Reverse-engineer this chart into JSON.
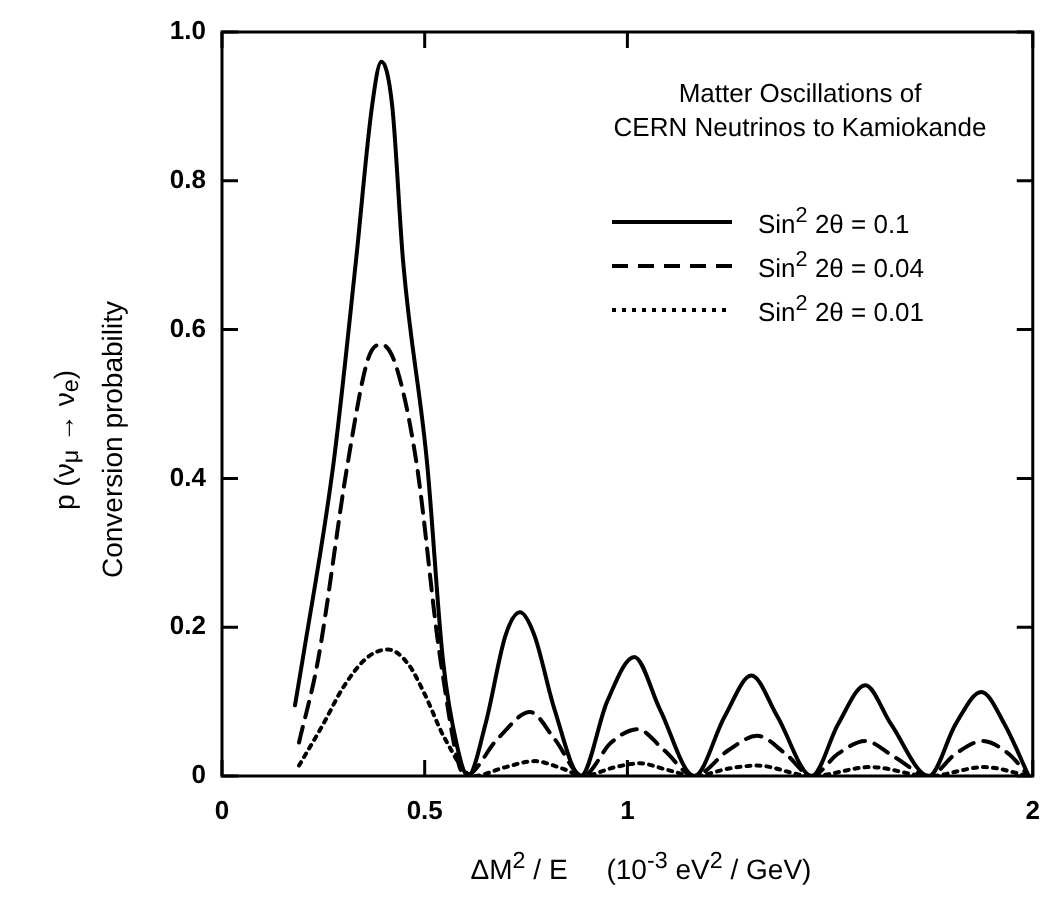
{
  "chart_data": {
    "type": "line",
    "title": "Matter Oscillations of\nCERN Neutrinos to Kamiokande",
    "xlabel": "ΔM$^{2}$ / E     (10$^{-3}$ eV$^{2}$ / GeV)",
    "ylabel": "p (ν$_{μ}$ → ν$_{e}$)\nConversion probability",
    "xlim": [
      0,
      2
    ],
    "xticks": [
      0,
      0.5,
      1,
      2
    ],
    "ylim": [
      0,
      1
    ],
    "yticks": [
      0,
      0.2,
      0.4,
      0.6,
      0.8,
      {
        "value": 1,
        "label": "1.0"
      }
    ],
    "grid": false,
    "legend": "top right",
    "marker": "none",
    "series": [
      {
        "name": "Sin$^{2}$ 2θ = 0.1",
        "color": "#000000",
        "line_style": "solid",
        "x": [
          0.18,
          0.2,
          0.275,
          0.33,
          0.37,
          0.393,
          0.42,
          0.447,
          0.506,
          0.545,
          0.58,
          0.607,
          0.65,
          0.7,
          0.735,
          0.77,
          0.82,
          0.885,
          0.95,
          1.017,
          1.08,
          1.165,
          1.24,
          1.306,
          1.37,
          1.455,
          1.52,
          1.587,
          1.65,
          1.744,
          1.81,
          1.873,
          1.93,
          1.99
        ],
        "values": [
          0.095,
          0.16,
          0.42,
          0.69,
          0.9,
          0.96,
          0.9,
          0.69,
          0.42,
          0.156,
          0.04,
          0,
          0.07,
          0.19,
          0.22,
          0.19,
          0.09,
          0,
          0.1,
          0.16,
          0.09,
          0,
          0.08,
          0.135,
          0.08,
          0,
          0.07,
          0.122,
          0.07,
          0,
          0.07,
          0.113,
          0.07,
          0
        ]
      },
      {
        "name": "Sin$^{2}$ 2θ = 0.04",
        "color": "#000000",
        "line_style": "dashed",
        "x": [
          0.19,
          0.237,
          0.31,
          0.36,
          0.393,
          0.43,
          0.48,
          0.539,
          0.6,
          0.68,
          0.76,
          0.82,
          0.89,
          0.96,
          1.025,
          1.09,
          1.165,
          1.25,
          1.32,
          1.39,
          1.455,
          1.52,
          1.587,
          1.66,
          1.744,
          1.81,
          1.876,
          1.94,
          1.99
        ],
        "values": [
          0.045,
          0.156,
          0.42,
          0.56,
          0.58,
          0.55,
          0.42,
          0.156,
          0,
          0.05,
          0.086,
          0.05,
          0,
          0.045,
          0.063,
          0.035,
          0,
          0.035,
          0.054,
          0.03,
          0,
          0.03,
          0.047,
          0.025,
          0,
          0.03,
          0.047,
          0.03,
          0
        ]
      },
      {
        "name": "Sin$^{2}$ 2θ = 0.01",
        "color": "#000000",
        "line_style": "dotted",
        "x": [
          0.19,
          0.25,
          0.3,
          0.36,
          0.41,
          0.46,
          0.5,
          0.55,
          0.62,
          0.7,
          0.77,
          0.84,
          0.89,
          0.97,
          1.03,
          1.1,
          1.165,
          1.25,
          1.32,
          1.455,
          1.6,
          1.744,
          1.88,
          1.99
        ],
        "values": [
          0.014,
          0.07,
          0.12,
          0.16,
          0.17,
          0.15,
          0.11,
          0.05,
          0,
          0.012,
          0.02,
          0.01,
          0,
          0.012,
          0.017,
          0.008,
          0,
          0.01,
          0.014,
          0,
          0.012,
          0,
          0.012,
          0
        ]
      }
    ]
  }
}
